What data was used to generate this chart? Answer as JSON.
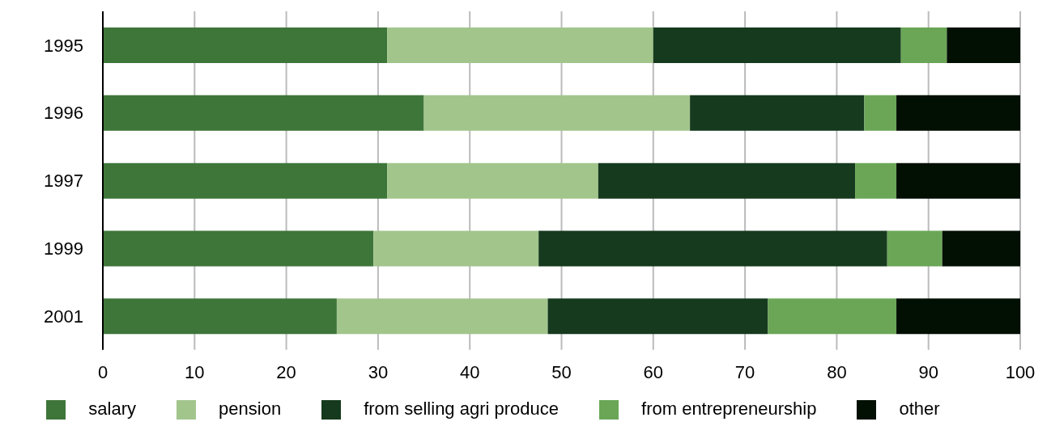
{
  "chart_data": {
    "type": "bar",
    "orientation": "horizontal",
    "stacked": true,
    "categories": [
      "1995",
      "1996",
      "1997",
      "1999",
      "2001"
    ],
    "series": [
      {
        "name": "salary",
        "color": "#3e7639",
        "values": [
          31,
          35,
          31,
          29.5,
          25.5
        ]
      },
      {
        "name": "pension",
        "color": "#a2c58c",
        "values": [
          29,
          29,
          23,
          18,
          23
        ]
      },
      {
        "name": "from selling agri produce",
        "color": "#163a1e",
        "values": [
          27,
          19,
          28,
          38,
          24
        ]
      },
      {
        "name": "from entrepreneurship",
        "color": "#6aa656",
        "values": [
          5,
          3.5,
          4.5,
          6,
          14
        ]
      },
      {
        "name": "other",
        "color": "#020f03",
        "values": [
          8,
          13.5,
          13.5,
          8.5,
          13.5
        ]
      }
    ],
    "xlim": [
      0,
      100
    ],
    "xticks": [
      0,
      10,
      20,
      30,
      40,
      50,
      60,
      70,
      80,
      90,
      100
    ],
    "grid": "x",
    "legend": "bottom"
  }
}
